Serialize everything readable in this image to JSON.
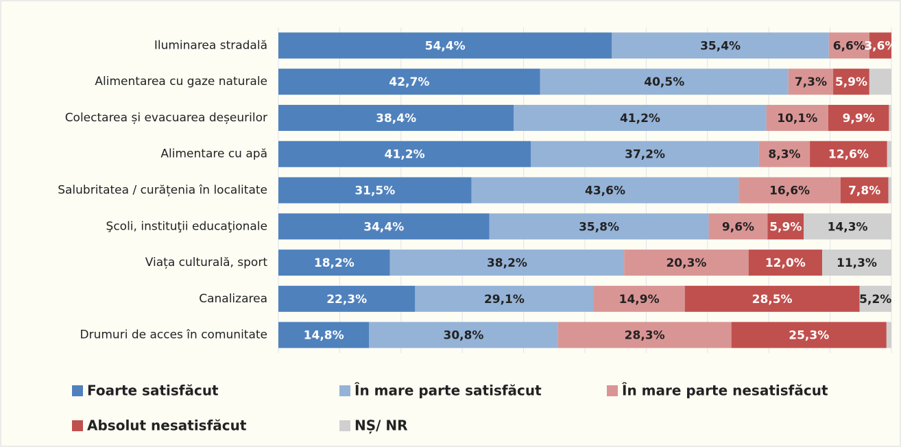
{
  "chart_data": {
    "type": "stacked_barh",
    "categories": [
      "Iluminarea stradală",
      "Alimentarea cu gaze naturale",
      "Colectarea și evacuarea deșeurilor",
      "Alimentare cu apă",
      "Salubritatea / curățenia în localitate",
      "Şcoli, instituţii educaţionale",
      "Viața culturală, sport",
      "Canalizarea",
      "Drumuri de acces în comunitate"
    ],
    "series": [
      {
        "name": "Foarte  satisfăcut",
        "color": "#4f81bd",
        "label_color": "#ffffff",
        "values": [
          54.4,
          42.7,
          38.4,
          41.2,
          31.5,
          34.4,
          18.2,
          22.3,
          14.8
        ],
        "value_labels": [
          "54,4%",
          "42,7%",
          "38,4%",
          "41,2%",
          "31,5%",
          "34,4%",
          "18,2%",
          "22,3%",
          "14,8%"
        ]
      },
      {
        "name": "În mare parte satisfăcut",
        "color": "#95b3d7",
        "label_color": "#222222",
        "values": [
          35.4,
          40.5,
          41.2,
          37.2,
          43.6,
          35.8,
          38.2,
          29.1,
          30.8
        ],
        "value_labels": [
          "35,4%",
          "40,5%",
          "41,2%",
          "37,2%",
          "43,6%",
          "35,8%",
          "38,2%",
          "29,1%",
          "30,8%"
        ]
      },
      {
        "name": "În mare parte nesatisfăcut",
        "color": "#d99594",
        "label_color": "#222222",
        "values": [
          6.6,
          7.3,
          10.1,
          8.3,
          16.6,
          9.6,
          20.3,
          14.9,
          28.3
        ],
        "value_labels": [
          "6,6%",
          "7,3%",
          "10,1%",
          "8,3%",
          "16,6%",
          "9,6%",
          "20,3%",
          "14,9%",
          "28,3%"
        ]
      },
      {
        "name": "Absolut nesatisfăcut",
        "color": "#c0504d",
        "label_color": "#ffffff",
        "values": [
          3.6,
          5.9,
          9.9,
          12.6,
          7.8,
          5.9,
          12.0,
          28.5,
          25.3
        ],
        "value_labels": [
          "3,6%",
          "5,9%",
          "9,9%",
          "12,6%",
          "7,8%",
          "5,9%",
          "12,0%",
          "28,5%",
          "25,3%"
        ]
      },
      {
        "name": "NȘ/ NR",
        "color": "#d0d0d0",
        "label_color": "#222222",
        "values": [
          0,
          3.6,
          0.4,
          0.7,
          0.5,
          14.3,
          11.3,
          5.2,
          0.8
        ],
        "value_labels": [
          null,
          null,
          null,
          null,
          null,
          "14,3%",
          "11,3%",
          "5,2%",
          null
        ]
      }
    ],
    "xlim": [
      0,
      100
    ],
    "xticks": [
      0,
      10,
      20,
      30,
      40,
      50,
      60,
      70,
      80,
      90,
      100
    ],
    "grid": true
  }
}
